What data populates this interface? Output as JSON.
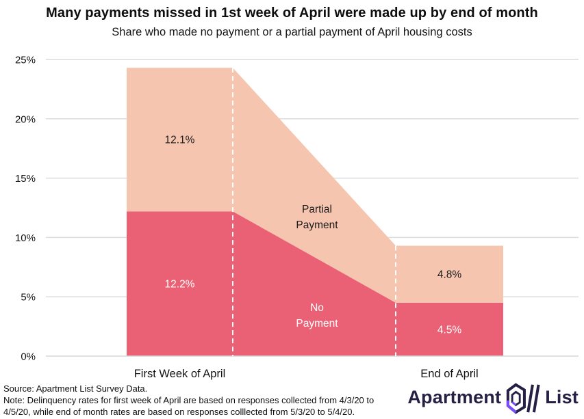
{
  "header": {
    "title": "Many payments missed in 1st week of April were made up by end of month",
    "subtitle": "Share who made no payment or a partial payment of April housing costs"
  },
  "chart_data": {
    "type": "area",
    "stacked": true,
    "categories": [
      "First Week of April",
      "End of April"
    ],
    "series": [
      {
        "name": "No Payment",
        "name_lines": [
          "No",
          "Payment"
        ],
        "values": [
          12.2,
          4.5
        ],
        "value_labels": [
          "12.2%",
          "4.5%"
        ],
        "color": "#ea6175",
        "value_label_color": "#ffffff",
        "name_color": "#ffffff"
      },
      {
        "name": "Partial Payment",
        "name_lines": [
          "Partial",
          "Payment"
        ],
        "values": [
          12.1,
          4.8
        ],
        "value_labels": [
          "12.1%",
          "4.8%"
        ],
        "color": "#f6c5af",
        "value_label_color": "#1b1b1b",
        "name_color": "#1b1b1b"
      }
    ],
    "totals": [
      24.3,
      9.3
    ],
    "ylim": [
      0,
      25
    ],
    "yticks": [
      {
        "label": "0%",
        "value": 0
      },
      {
        "label": "5%",
        "value": 5
      },
      {
        "label": "10%",
        "value": 10
      },
      {
        "label": "15%",
        "value": 15
      },
      {
        "label": "20%",
        "value": 20
      },
      {
        "label": "25%",
        "value": 25
      }
    ],
    "grid": true,
    "legend": "inline-labels",
    "colors": {
      "grid": "#dcdce0",
      "axis_text": "#141414",
      "divider": "#ffffff"
    }
  },
  "footer": {
    "source": "Source: Apartment List Survey Data.",
    "note": "Note: Delinquency rates for first week of April are based on responses collected from 4/3/20 to 4/5/20, while end of month rates are based on responses colllected from 5/3/20 to 5/4/20."
  },
  "logo": {
    "word1": "Apartment",
    "word2": "List",
    "color": "#262044",
    "accent": "#7c4dff"
  }
}
